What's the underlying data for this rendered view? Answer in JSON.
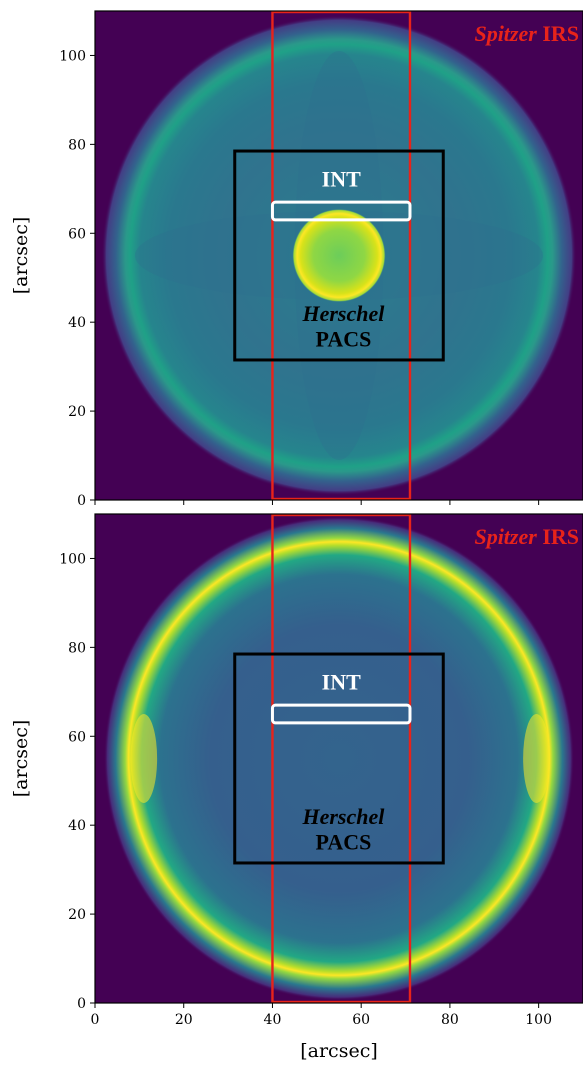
{
  "chart_data": [
    {
      "type": "heatmap",
      "panel": "top",
      "ylabel": "[arcsec]",
      "xlim": [
        0,
        110
      ],
      "ylim": [
        0,
        110
      ],
      "yticks": [
        0,
        20,
        40,
        60,
        80,
        100
      ],
      "xticks": [
        0,
        20,
        40,
        60,
        80,
        100
      ],
      "colormap": "viridis",
      "annotations": [
        {
          "label_em": "Spitzer",
          "label": " IRS",
          "color": "#e8231a",
          "x0": 40,
          "x1": 71,
          "y0": 0,
          "y1": 110
        },
        {
          "label_em": "Herschel",
          "label": "PACS",
          "color": "#000000",
          "x0": 31.5,
          "x1": 78.5,
          "y0": 31.5,
          "y1": 78.5
        },
        {
          "label": "INT",
          "color": "#ffffff",
          "x0": 40,
          "x1": 71,
          "y0": 63,
          "y1": 67
        }
      ]
    },
    {
      "type": "heatmap",
      "panel": "bottom",
      "xlabel": "[arcsec]",
      "ylabel": "[arcsec]",
      "xlim": [
        0,
        110
      ],
      "ylim": [
        0,
        110
      ],
      "xticks": [
        0,
        20,
        40,
        60,
        80,
        100
      ],
      "yticks": [
        0,
        20,
        40,
        60,
        80,
        100
      ],
      "colormap": "viridis",
      "annotations": [
        {
          "label_em": "Spitzer",
          "label": " IRS",
          "color": "#e8231a",
          "x0": 40,
          "x1": 71,
          "y0": 0,
          "y1": 110
        },
        {
          "label_em": "Herschel",
          "label": "PACS",
          "color": "#000000",
          "x0": 31.5,
          "x1": 78.5,
          "y0": 31.5,
          "y1": 78.5
        },
        {
          "label": "INT",
          "color": "#ffffff",
          "x0": 40,
          "x1": 71,
          "y0": 63,
          "y1": 67
        }
      ]
    }
  ]
}
